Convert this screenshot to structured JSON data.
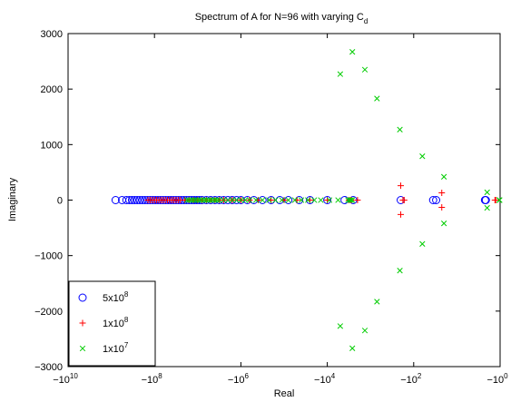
{
  "chart_data": {
    "type": "scatter",
    "title_main": "Spectrum of A for N=96 with varying C",
    "title_sub": "d",
    "xlabel": "Real",
    "ylabel": "Imaginary",
    "x_scale": "symlog-negative",
    "xlim_log10": [
      10,
      0
    ],
    "ylim": [
      -3000,
      3000
    ],
    "xticks": [
      {
        "exp": 10,
        "base": "−10",
        "sup": "10"
      },
      {
        "exp": 8,
        "base": "−10",
        "sup": "8"
      },
      {
        "exp": 6,
        "base": "−10",
        "sup": "6"
      },
      {
        "exp": 4,
        "base": "−10",
        "sup": "4"
      },
      {
        "exp": 2,
        "base": "−10",
        "sup": "2"
      },
      {
        "exp": 0,
        "base": "−10",
        "sup": "0"
      }
    ],
    "yticks": [
      "3000",
      "2000",
      "1000",
      "0",
      "−1000",
      "−2000",
      "−3000"
    ],
    "ytick_values": [
      3000,
      2000,
      1000,
      0,
      -1000,
      -2000,
      -3000
    ],
    "grid": false,
    "legend_position": "bottom-left",
    "series": [
      {
        "name": "5x10^8",
        "legend_base": "5x10",
        "legend_sup": "8",
        "marker": "o",
        "color": "#0000ff",
        "points": [
          [
            -8.9,
            0
          ],
          [
            -8.75,
            0
          ],
          [
            -8.65,
            0
          ],
          [
            -8.58,
            0
          ],
          [
            -8.52,
            0
          ],
          [
            -8.46,
            0
          ],
          [
            -8.4,
            0
          ],
          [
            -8.34,
            0
          ],
          [
            -8.28,
            0
          ],
          [
            -8.22,
            0
          ],
          [
            -8.16,
            0
          ],
          [
            -8.1,
            0
          ],
          [
            -8.04,
            0
          ],
          [
            -7.98,
            0
          ],
          [
            -7.92,
            0
          ],
          [
            -7.86,
            0
          ],
          [
            -7.8,
            0
          ],
          [
            -7.74,
            0
          ],
          [
            -7.68,
            0
          ],
          [
            -7.62,
            0
          ],
          [
            -7.56,
            0
          ],
          [
            -7.5,
            0
          ],
          [
            -7.44,
            0
          ],
          [
            -7.38,
            0
          ],
          [
            -7.32,
            0
          ],
          [
            -7.26,
            0
          ],
          [
            -7.2,
            0
          ],
          [
            -7.14,
            0
          ],
          [
            -7.08,
            0
          ],
          [
            -7.02,
            0
          ],
          [
            -6.96,
            0
          ],
          [
            -6.9,
            0
          ],
          [
            -6.8,
            0
          ],
          [
            -6.7,
            0
          ],
          [
            -6.6,
            0
          ],
          [
            -6.5,
            0
          ],
          [
            -6.4,
            0
          ],
          [
            -6.3,
            0
          ],
          [
            -6.2,
            0
          ],
          [
            -6.1,
            0
          ],
          [
            -6.0,
            0
          ],
          [
            -5.85,
            0
          ],
          [
            -5.7,
            0
          ],
          [
            -5.5,
            0
          ],
          [
            -5.3,
            0
          ],
          [
            -5.1,
            0
          ],
          [
            -4.9,
            0
          ],
          [
            -4.65,
            0
          ],
          [
            -4.4,
            0
          ],
          [
            -4.0,
            0
          ],
          [
            -3.6,
            0
          ],
          [
            -3.4,
            0
          ],
          [
            -2.3,
            0
          ],
          [
            -1.55,
            0
          ],
          [
            -1.48,
            0
          ],
          [
            -0.35,
            0
          ],
          [
            -0.33,
            0
          ]
        ]
      },
      {
        "name": "1x10^8",
        "legend_base": "1x10",
        "legend_sup": "8",
        "marker": "+",
        "color": "#ff0000",
        "points": [
          [
            -8.15,
            0
          ],
          [
            -8.1,
            0
          ],
          [
            -8.05,
            0
          ],
          [
            -8.0,
            0
          ],
          [
            -7.95,
            0
          ],
          [
            -7.9,
            0
          ],
          [
            -7.85,
            0
          ],
          [
            -7.8,
            0
          ],
          [
            -7.75,
            0
          ],
          [
            -7.7,
            0
          ],
          [
            -7.65,
            0
          ],
          [
            -7.6,
            0
          ],
          [
            -7.55,
            0
          ],
          [
            -7.5,
            0
          ],
          [
            -7.45,
            0
          ],
          [
            -7.4,
            0
          ],
          [
            -7.3,
            0
          ],
          [
            -7.2,
            0
          ],
          [
            -7.1,
            0
          ],
          [
            -7.0,
            0
          ],
          [
            -6.9,
            0
          ],
          [
            -6.8,
            0
          ],
          [
            -6.7,
            0
          ],
          [
            -6.6,
            0
          ],
          [
            -6.5,
            0
          ],
          [
            -6.4,
            0
          ],
          [
            -6.2,
            0
          ],
          [
            -6.0,
            0
          ],
          [
            -5.8,
            0
          ],
          [
            -5.6,
            0
          ],
          [
            -5.3,
            0
          ],
          [
            -5.0,
            0
          ],
          [
            -4.7,
            0
          ],
          [
            -4.4,
            0
          ],
          [
            -4.0,
            0
          ],
          [
            -3.5,
            0
          ],
          [
            -3.45,
            0
          ],
          [
            -3.3,
            0
          ],
          [
            -2.25,
            0
          ],
          [
            -2.22,
            0
          ],
          [
            -2.3,
            260
          ],
          [
            -2.3,
            -260
          ],
          [
            -1.35,
            130
          ],
          [
            -1.35,
            -130
          ],
          [
            -0.12,
            0
          ],
          [
            -0.1,
            0
          ]
        ]
      },
      {
        "name": "1x10^7",
        "legend_base": "1x10",
        "legend_sup": "7",
        "marker": "x",
        "color": "#00cc00",
        "points": [
          [
            -7.25,
            0
          ],
          [
            -7.2,
            0
          ],
          [
            -7.15,
            0
          ],
          [
            -7.1,
            0
          ],
          [
            -7.05,
            0
          ],
          [
            -7.0,
            0
          ],
          [
            -6.95,
            0
          ],
          [
            -6.9,
            0
          ],
          [
            -6.85,
            0
          ],
          [
            -6.8,
            0
          ],
          [
            -6.75,
            0
          ],
          [
            -6.7,
            0
          ],
          [
            -6.65,
            0
          ],
          [
            -6.6,
            0
          ],
          [
            -6.55,
            0
          ],
          [
            -6.5,
            0
          ],
          [
            -6.4,
            0
          ],
          [
            -6.3,
            0
          ],
          [
            -6.2,
            0
          ],
          [
            -6.1,
            0
          ],
          [
            -6.0,
            0
          ],
          [
            -5.9,
            0
          ],
          [
            -5.8,
            0
          ],
          [
            -5.65,
            0
          ],
          [
            -5.5,
            0
          ],
          [
            -5.35,
            0
          ],
          [
            -5.2,
            0
          ],
          [
            -5.05,
            0
          ],
          [
            -4.9,
            0
          ],
          [
            -4.75,
            0
          ],
          [
            -4.6,
            0
          ],
          [
            -4.45,
            0
          ],
          [
            -4.3,
            0
          ],
          [
            -4.15,
            0
          ],
          [
            -3.95,
            0
          ],
          [
            -3.75,
            0
          ],
          [
            -3.52,
            0
          ],
          [
            -3.48,
            0
          ],
          [
            -3.45,
            0
          ],
          [
            -3.42,
            0
          ],
          [
            -3.7,
            2270
          ],
          [
            -3.7,
            -2270
          ],
          [
            -3.42,
            2670
          ],
          [
            -3.42,
            -2670
          ],
          [
            -3.13,
            2350
          ],
          [
            -3.13,
            -2350
          ],
          [
            -2.85,
            1830
          ],
          [
            -2.85,
            -1830
          ],
          [
            -2.32,
            1270
          ],
          [
            -2.32,
            -1270
          ],
          [
            -1.8,
            790
          ],
          [
            -1.8,
            -790
          ],
          [
            -1.3,
            420
          ],
          [
            -1.3,
            -420
          ],
          [
            -0.3,
            140
          ],
          [
            -0.3,
            -140
          ],
          [
            -0.02,
            0
          ],
          [
            -0.01,
            0
          ]
        ]
      }
    ]
  }
}
